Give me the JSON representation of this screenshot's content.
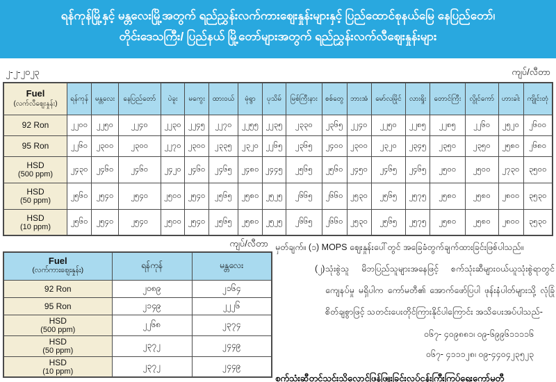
{
  "header": {
    "title_line1": "ရန်ကုန်မြို့နှင့် မန္တလေးမြို့အတွက် ရည်ညွှန်းလက်ကားဈေးနှုန်းများနှင့် ပြည်ထောင်စုနယ်မြေ နေပြည်တော်၊",
    "title_line2": "တိုင်းဒေသကြီး/ ပြည်နယ် မြို့တော်များအတွက် ရည်ညွှန်းလက်လီဈေးနှုန်းများ"
  },
  "date": "၂-၂-၂၀၂၃",
  "unit_label_top": "ကျပ်/လီတာ",
  "unit_label_bottom": "ကျပ်/လီတာ",
  "colors": {
    "banner_bg": "#29a8df",
    "header_cell_bg": "#a9daef",
    "label_cell_bg": "#f3edd5",
    "border": "#4a4a4a"
  },
  "retail_table": {
    "fuel_header": {
      "line1": "Fuel",
      "line2": "(လက်လီဈေးနှုန်း)"
    },
    "cities": [
      "ရန်ကုန်",
      "မန္တလေး",
      "နေပြည်တော်",
      "ပဲခူး",
      "မကွေး",
      "ထားဝယ်",
      "မုံရွာ",
      "ပုသိမ်",
      "မြစ်ကြီးနား",
      "စစ်တွေ",
      "ဘားအံ",
      "မော်လမြိုင်",
      "လားရှိုး",
      "တောင်ကြီး",
      "လွိုင်ကော်",
      "ဟားခါး",
      "ကျိုင်းတုံ"
    ],
    "rows": [
      {
        "label": "92 Ron",
        "values": [
          "၂၂၀၀",
          "၂၂၅၀",
          "၂၂၄၀",
          "၂၂၃၀",
          "၂၂၄၅",
          "၂၂၇၀",
          "၂၂၅၅",
          "၂၂၃၅",
          "၂၃၃၀",
          "၂၃၆၅",
          "၂၂၄၀",
          "၂၂၅၀",
          "၂၂၈၅",
          "၂၂၈၅",
          "၂၂၆၀",
          "၂၅၂၀",
          "၂၆၀၀"
        ]
      },
      {
        "label": "95 Ron",
        "values": [
          "၂၂၆၀",
          "၂၃၀၀",
          "၂၃၀၀",
          "၂၂၇၀",
          "၂၃၀၀",
          "၂၃၃၅",
          "၂၃၂၀",
          "၂၂၆၅",
          "၂၃၆၅",
          "၂၄၀၀",
          "၂၃၀၀",
          "၂၃၂၀",
          "၂၃၄၅",
          "၂၃၅၀",
          "၂၃၅၀",
          "၂၅၈၀",
          "၂၆၈၀"
        ]
      },
      {
        "label": "HSD",
        "label2": "(500 ppm)",
        "values": [
          "၂၄၃၀",
          "၂၄၆၀",
          "၂၄၆၀",
          "၂၄၂၀",
          "၂၄၆၀",
          "၂၄၆၅",
          "၂၄၈၀",
          "၂၄၄၅",
          "၂၅၆၅",
          "၂၅၆၀",
          "၂၄၅၀",
          "၂၄၆၅",
          "၂၄၆၅",
          "၂၅၀၀",
          "၂၅၀၀",
          "၂၇၃၀",
          "၃၅၀၀"
        ]
      },
      {
        "label": "HSD",
        "label2": "(50 ppm)",
        "values": [
          "၂၅၆၀",
          "၂၅၄၀",
          "၂၅၄၀",
          "၂၅၀၀",
          "၂၅၄၀",
          "၂၅၆၅",
          "၂၅၈၀",
          "၂၅၂၅",
          "၂၆၆၅",
          "၂၆၆၀",
          "၂၅၃၀",
          "၂၅၆၅",
          "၂၅၇၅",
          "၂၅၈၀",
          "၂၅၈၀",
          "၂၈၀၀",
          "၃၅၃၀"
        ]
      },
      {
        "label": "HSD",
        "label2": "(10 ppm)",
        "values": [
          "၂၅၆၀",
          "၂၅၄၀",
          "၂၅၄၀",
          "၂၅၀၀",
          "၂၅၄၀",
          "၂၅၆၅",
          "၂၅၈၀",
          "၂၅၂၅",
          "၂၆၆၅",
          "၂၆၆၀",
          "၂၅၃၀",
          "၂၅၆၅",
          "၂၅၇၅",
          "၂၅၈၀",
          "၂၅၈၀",
          "၂၈၀၀",
          "၃၅၃၀"
        ]
      }
    ]
  },
  "wholesale_table": {
    "fuel_header": {
      "line1": "Fuel",
      "line2": "(လက်ကားဈေးနှုန်း)"
    },
    "columns": [
      "ရန်ကုန်",
      "မန္တလေး"
    ],
    "rows": [
      {
        "label": "92 Ron",
        "values": [
          "၂၀၈၉",
          "၂၁၆၄"
        ]
      },
      {
        "label": "95 Ron",
        "values": [
          "၂၁၄၉",
          "၂၂၂၆"
        ]
      },
      {
        "label": "HSD",
        "label2": "(500 ppm)",
        "values": [
          "၂၂၆၈",
          "၂၃၇၄"
        ]
      },
      {
        "label": "HSD",
        "label2": "(50 ppm)",
        "values": [
          "၂၃၇၂",
          "၂၄၄၉"
        ]
      },
      {
        "label": "HSD",
        "label2": "(10 ppm)",
        "values": [
          "၂၃၇၂",
          "၂၄၄၉"
        ]
      }
    ]
  },
  "notes": {
    "label": "မှတ်ချက်။",
    "item1_num": "(၁)",
    "item1": "MOPS ဈေးနှုန်းပေါ်တွင် အခြေခံတွက်ချက်ထားခြင်းဖြစ်ပါသည်။",
    "item2_num": "(၂)",
    "item2": "သုံးစွဲသူ မိဘပြည်သူများအနေဖြင့် စက်သုံးဆီများဝယ်ယူသုံးစွဲရာတွင် ကျေနပ်မှု မရှိပါက ကော်မတီ၏ အောက်ဖော်ပြပါ ဖုန်းနံပါတ်များသို့ လုံခြုံစိတ်ချစွာဖြင့် သတင်းပေးတိုင်ကြားနိုင်ပါကြောင်း အသိပေးအပ်ပါသည်-",
    "phone1": "၀၆၇- ၄၀၉၈၈၁၊ ၀၉-၆၉၉၆၁၁၁၁၆",
    "phone2": "၀၆၇- ၄၁၁၁၂၈၊ ၀၉-၄၄၀၄၂၃၅၂၃",
    "footer": "စက်သုံးဆီတင်သွင်းသိုလှောင်ဖြန့်ဖြူးခြင်းလုပ်ငန်းကြီးကြပ်ရေးကော်မတီ"
  }
}
